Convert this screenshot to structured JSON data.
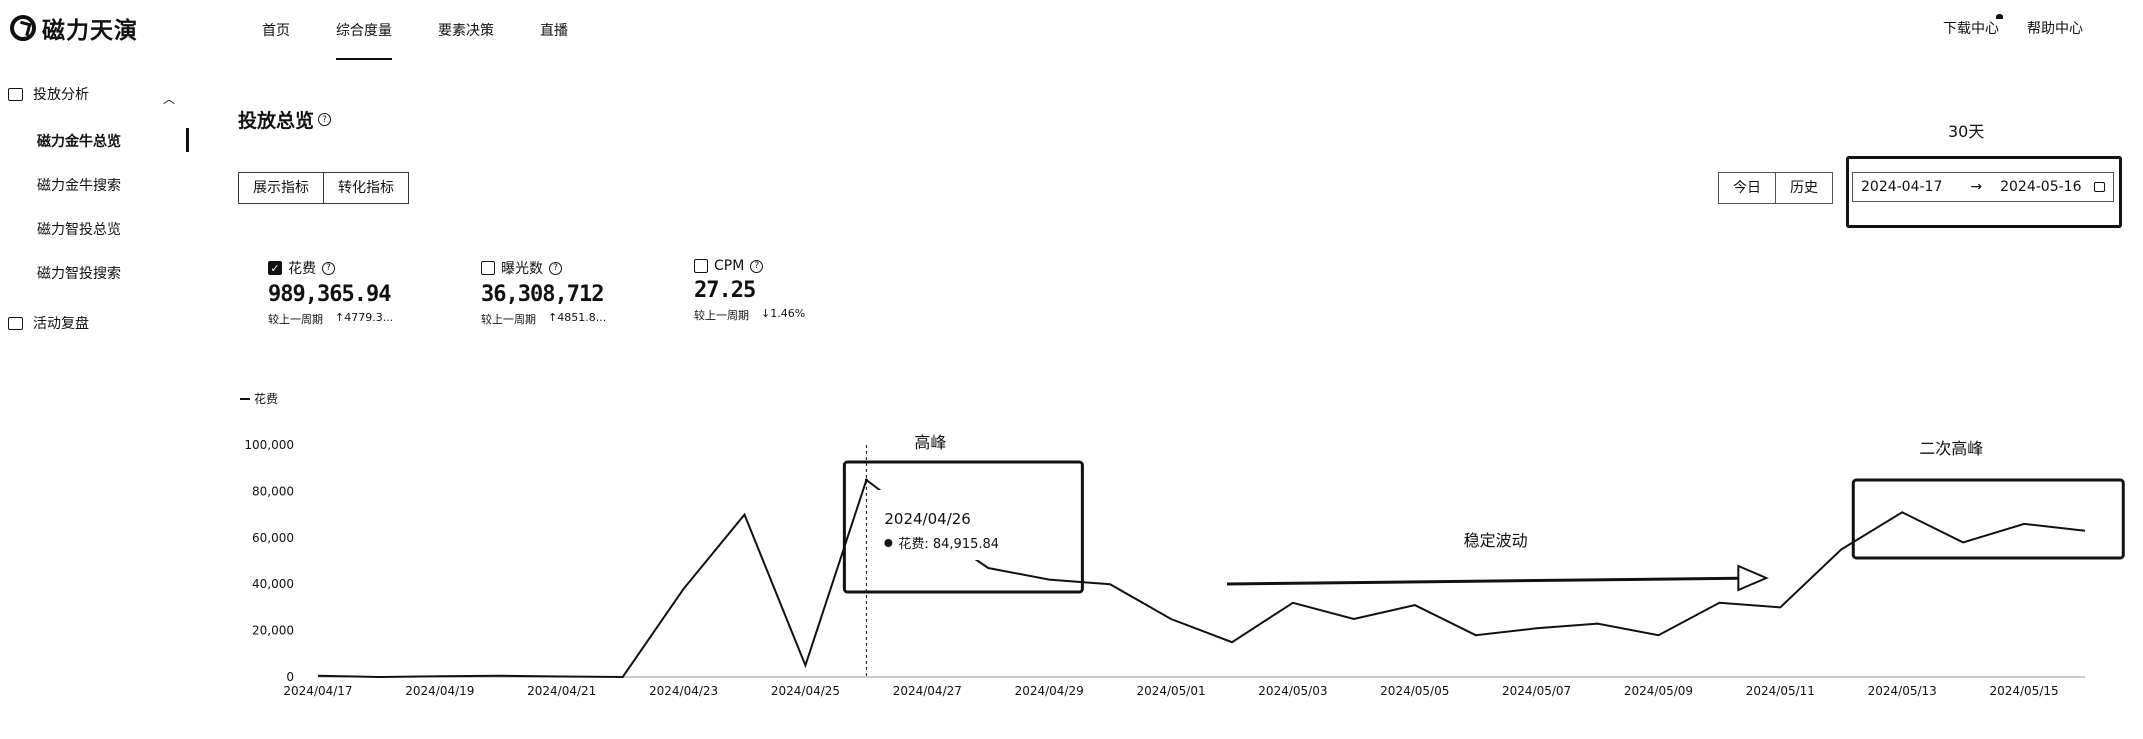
{
  "app": {
    "logo_text": "磁力天演"
  },
  "nav": {
    "items": [
      {
        "label": "首页",
        "active": false
      },
      {
        "label": "综合度量",
        "active": true
      },
      {
        "label": "要素决策",
        "active": false
      },
      {
        "label": "直播",
        "active": false
      }
    ],
    "right": [
      "下载中心",
      "帮助中心"
    ]
  },
  "sidebar": {
    "groups": [
      {
        "label": "投放分析",
        "icon": "chart-box-icon",
        "expanded": true,
        "items": [
          {
            "label": "磁力金牛总览",
            "active": true
          },
          {
            "label": "磁力金牛搜索",
            "active": false
          },
          {
            "label": "磁力智投总览",
            "active": false
          },
          {
            "label": "磁力智投搜索",
            "active": false
          }
        ]
      },
      {
        "label": "活动复盘",
        "icon": "monitor-icon",
        "expanded": false,
        "items": []
      }
    ]
  },
  "page": {
    "title": "投放总览",
    "tabs": [
      "展示指标",
      "转化指标"
    ],
    "day_buttons": [
      "今日",
      "历史"
    ],
    "range_annotation": "30天",
    "date_start": "2024-04-17",
    "date_end": "2024-05-16",
    "date_arrow": "→"
  },
  "metrics": [
    {
      "label": "花费",
      "checked": true,
      "value": "989,365.94",
      "compare_label": "较上一周期",
      "change": "↑4779.3..."
    },
    {
      "label": "曝光数",
      "checked": false,
      "value": "36,308,712",
      "compare_label": "较上一周期",
      "change": "↑4851.8..."
    },
    {
      "label": "CPM",
      "checked": false,
      "value": "27.25",
      "compare_label": "较上一周期",
      "change": "↓1.46%"
    }
  ],
  "chart_data": {
    "type": "line",
    "legend": "花费",
    "series": [
      {
        "name": "花费",
        "x": [
          "2024/04/17",
          "2024/04/18",
          "2024/04/19",
          "2024/04/20",
          "2024/04/21",
          "2024/04/22",
          "2024/04/23",
          "2024/04/24",
          "2024/04/25",
          "2024/04/26",
          "2024/04/27",
          "2024/04/28",
          "2024/04/29",
          "2024/04/30",
          "2024/05/01",
          "2024/05/02",
          "2024/05/03",
          "2024/05/04",
          "2024/05/05",
          "2024/05/06",
          "2024/05/07",
          "2024/05/08",
          "2024/05/09",
          "2024/05/10",
          "2024/05/11",
          "2024/05/12",
          "2024/05/13",
          "2024/05/14",
          "2024/05/15",
          "2024/05/16"
        ],
        "values": [
          500,
          0,
          300,
          500,
          200,
          0,
          38000,
          70000,
          5000,
          84915.84,
          65000,
          47000,
          42000,
          40000,
          25000,
          15000,
          32000,
          25000,
          31000,
          18000,
          21000,
          23000,
          18000,
          32000,
          30000,
          55000,
          71000,
          58000,
          66000,
          63000
        ]
      }
    ],
    "x_ticks": [
      "2024/04/17",
      "2024/04/19",
      "2024/04/21",
      "2024/04/23",
      "2024/04/25",
      "2024/04/27",
      "2024/04/29",
      "2024/05/01",
      "2024/05/03",
      "2024/05/05",
      "2024/05/07",
      "2024/05/09",
      "2024/05/11",
      "2024/05/13",
      "2024/05/15"
    ],
    "y_ticks": [
      "0",
      "20,000",
      "40,000",
      "60,000",
      "80,000",
      "100,000"
    ],
    "ylim": [
      0,
      100000
    ],
    "tooltip": {
      "date": "2024/04/26",
      "label": "花费",
      "value": "84,915.84"
    },
    "annotations": {
      "peak": "高峰",
      "stable": "稳定波动",
      "second_peak": "二次高峰"
    }
  }
}
